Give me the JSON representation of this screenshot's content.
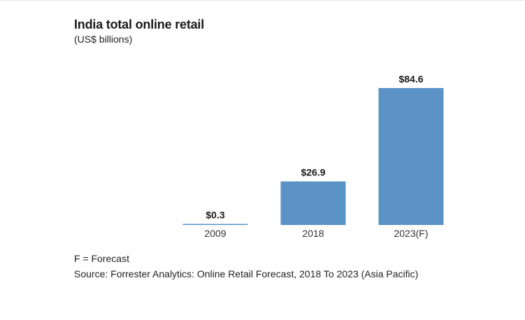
{
  "chart_data": {
    "type": "bar",
    "title": "India total online retail",
    "subtitle": "(US$ billions)",
    "categories": [
      "2009",
      "2018",
      "2023(F)"
    ],
    "values": [
      0.3,
      26.9,
      84.6
    ],
    "value_labels": [
      "$0.3",
      "$26.9",
      "$84.6"
    ],
    "xlabel": "",
    "ylabel": "",
    "ylim": [
      0,
      84.6
    ],
    "grid": false,
    "legend": "none",
    "bar_color": "#5b93c6"
  },
  "footnote": "F = Forecast",
  "source": "Source: Forrester Analytics: Online Retail Forecast, 2018 To 2023 (Asia Pacific)"
}
